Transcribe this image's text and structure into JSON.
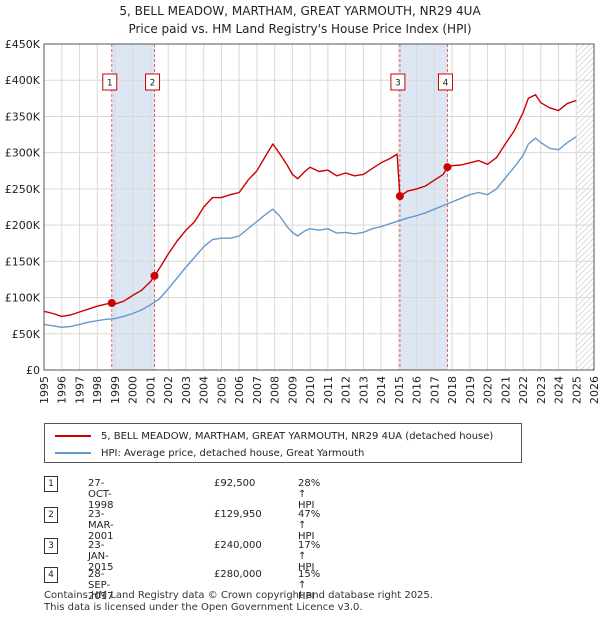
{
  "chart_data": {
    "type": "line",
    "title": "5, BELL MEADOW, MARTHAM, GREAT YARMOUTH, NR29 4UA",
    "subtitle": "Price paid vs. HM Land Registry's House Price Index (HPI)",
    "xlim": [
      1995,
      2026
    ],
    "ylim": [
      0,
      450000
    ],
    "x_ticks": [
      "1995",
      "1996",
      "1997",
      "1998",
      "1999",
      "2000",
      "2001",
      "2002",
      "2003",
      "2004",
      "2005",
      "2006",
      "2007",
      "2008",
      "2009",
      "2010",
      "2011",
      "2012",
      "2013",
      "2014",
      "2015",
      "2016",
      "2017",
      "2018",
      "2019",
      "2020",
      "2021",
      "2022",
      "2023",
      "2024",
      "2025",
      "2026"
    ],
    "y_ticks": [
      {
        "value": 0,
        "label": "£0"
      },
      {
        "value": 50000,
        "label": "£50K"
      },
      {
        "value": 100000,
        "label": "£100K"
      },
      {
        "value": 150000,
        "label": "£150K"
      },
      {
        "value": 200000,
        "label": "£200K"
      },
      {
        "value": 250000,
        "label": "£250K"
      },
      {
        "value": 300000,
        "label": "£300K"
      },
      {
        "value": 350000,
        "label": "£350K"
      },
      {
        "value": 400000,
        "label": "£400K"
      },
      {
        "value": 450000,
        "label": "£450K"
      }
    ],
    "grid": true,
    "hatched_future_from": 2025.0,
    "series": [
      {
        "name": "5, BELL MEADOW, MARTHAM, GREAT YARMOUTH, NR29 4UA (detached house)",
        "color": "#cc0000",
        "x": [
          1995.0,
          1995.5,
          1996.0,
          1996.5,
          1997.0,
          1997.5,
          1998.0,
          1998.5,
          1998.82,
          1999.0,
          1999.5,
          2000.0,
          2000.5,
          2001.0,
          2001.23,
          2001.5,
          2002.0,
          2002.5,
          2003.0,
          2003.5,
          2004.0,
          2004.5,
          2005.0,
          2005.5,
          2006.0,
          2006.5,
          2007.0,
          2007.5,
          2007.9,
          2008.3,
          2008.7,
          2009.0,
          2009.3,
          2009.7,
          2010.0,
          2010.5,
          2011.0,
          2011.5,
          2012.0,
          2012.5,
          2013.0,
          2013.5,
          2014.0,
          2014.5,
          2014.9,
          2015.06,
          2015.5,
          2016.0,
          2016.5,
          2017.0,
          2017.5,
          2017.74,
          2018.0,
          2018.5,
          2019.0,
          2019.5,
          2020.0,
          2020.5,
          2021.0,
          2021.5,
          2022.0,
          2022.3,
          2022.7,
          2023.0,
          2023.5,
          2024.0,
          2024.5,
          2025.0
        ],
        "values": [
          81000,
          78000,
          74000,
          76000,
          80000,
          84000,
          88000,
          91000,
          92500,
          91000,
          95000,
          103000,
          110000,
          122000,
          129950,
          140000,
          160000,
          178000,
          193000,
          205000,
          225000,
          238000,
          238000,
          242000,
          245000,
          262000,
          275000,
          296000,
          312000,
          298000,
          283000,
          270000,
          264000,
          274000,
          280000,
          274000,
          276000,
          268000,
          272000,
          268000,
          270000,
          278000,
          286000,
          292000,
          298000,
          240000,
          247000,
          250000,
          254000,
          262000,
          270000,
          280000,
          282000,
          283000,
          286000,
          289000,
          284000,
          293000,
          312000,
          330000,
          355000,
          375000,
          380000,
          369000,
          362000,
          358000,
          368000,
          372000
        ]
      },
      {
        "name": "HPI: Average price, detached house, Great Yarmouth",
        "color": "#6699cc",
        "x": [
          1995.0,
          1995.5,
          1996.0,
          1996.5,
          1997.0,
          1997.5,
          1998.0,
          1998.5,
          1999.0,
          1999.5,
          2000.0,
          2000.5,
          2001.0,
          2001.5,
          2002.0,
          2002.5,
          2003.0,
          2003.5,
          2004.0,
          2004.5,
          2005.0,
          2005.5,
          2006.0,
          2006.5,
          2007.0,
          2007.5,
          2007.9,
          2008.3,
          2008.7,
          2009.0,
          2009.3,
          2009.7,
          2010.0,
          2010.5,
          2011.0,
          2011.5,
          2012.0,
          2012.5,
          2013.0,
          2013.5,
          2014.0,
          2014.5,
          2015.0,
          2015.5,
          2016.0,
          2016.5,
          2017.0,
          2017.5,
          2018.0,
          2018.5,
          2019.0,
          2019.5,
          2020.0,
          2020.5,
          2021.0,
          2021.5,
          2022.0,
          2022.3,
          2022.7,
          2023.0,
          2023.5,
          2024.0,
          2024.5,
          2025.0
        ],
        "values": [
          63000,
          61000,
          59000,
          60000,
          63000,
          66000,
          68000,
          70000,
          71000,
          74000,
          78000,
          83000,
          90000,
          98000,
          112000,
          127000,
          142000,
          156000,
          170000,
          180000,
          182000,
          182000,
          185000,
          195000,
          205000,
          215000,
          222000,
          212000,
          198000,
          190000,
          185000,
          192000,
          195000,
          193000,
          195000,
          189000,
          190000,
          188000,
          190000,
          195000,
          198000,
          202000,
          206000,
          210000,
          213000,
          217000,
          222000,
          227000,
          232000,
          237000,
          242000,
          245000,
          242000,
          250000,
          265000,
          280000,
          296000,
          312000,
          320000,
          314000,
          306000,
          304000,
          314000,
          322000
        ]
      }
    ],
    "sales": [
      {
        "num": "1",
        "date": "27-OCT-1998",
        "x": 1998.82,
        "price": "£92,500",
        "value": 92500,
        "hpi": "28% ↑ HPI"
      },
      {
        "num": "2",
        "date": "23-MAR-2001",
        "x": 2001.23,
        "price": "£129,950",
        "value": 129950,
        "hpi": "47% ↑ HPI"
      },
      {
        "num": "3",
        "date": "23-JAN-2015",
        "x": 2015.06,
        "price": "£240,000",
        "value": 240000,
        "hpi": "17% ↑ HPI"
      },
      {
        "num": "4",
        "date": "28-SEP-2017",
        "x": 2017.74,
        "price": "£280,000",
        "value": 280000,
        "hpi": "15% ↑ HPI"
      }
    ],
    "shaded_regions": [
      [
        1998.82,
        2001.23
      ],
      [
        2015.06,
        2017.74
      ]
    ],
    "legend": {
      "property": "5, BELL MEADOW, MARTHAM, GREAT YARMOUTH, NR29 4UA (detached house)",
      "hpi": "HPI: Average price, detached house, Great Yarmouth"
    },
    "footer": [
      "Contains HM Land Registry data © Crown copyright and database right 2025.",
      "This data is licensed under the Open Government Licence v3.0."
    ]
  }
}
